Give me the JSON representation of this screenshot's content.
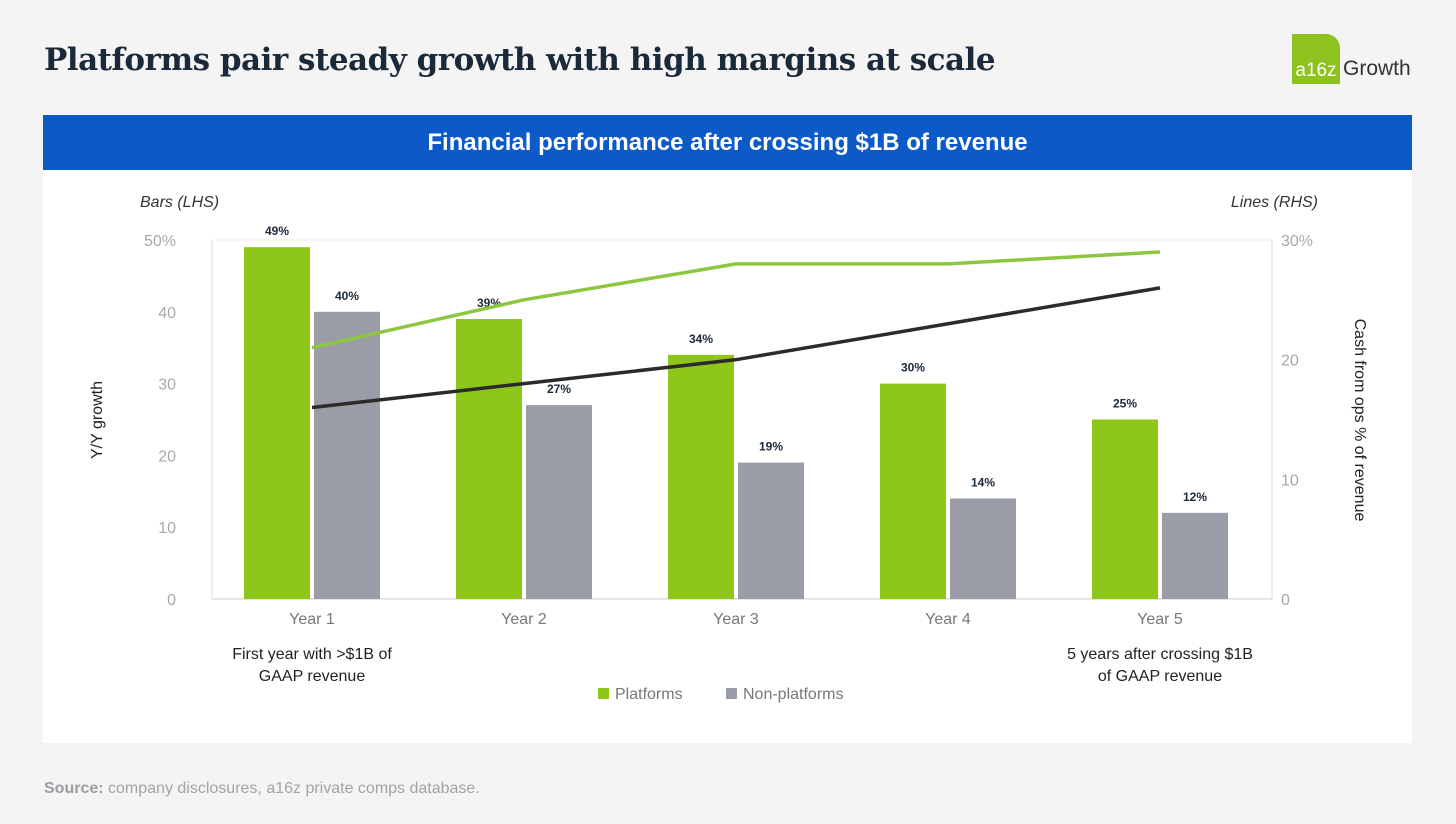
{
  "title": "Platforms pair steady growth with high margins at scale",
  "logo": {
    "mark": "a16z",
    "text": "Growth"
  },
  "banner": "Financial performance after crossing $1B of revenue",
  "source": {
    "label": "Source:",
    "text": " company disclosures, a16z private comps database."
  },
  "colors": {
    "platforms": "#8fc61a",
    "non_platforms": "#9a9ca8",
    "platforms_line": "#8dc63f",
    "non_platforms_line": "#2b2b2b",
    "banner": "#0b5ac7"
  },
  "chart_data": {
    "type": "bar",
    "title": "Financial performance after crossing $1B of revenue",
    "categories": [
      "Year 1",
      "Year 2",
      "Year 3",
      "Year 4",
      "Year 5"
    ],
    "lhs_label": "Bars (LHS)",
    "rhs_label": "Lines (RHS)",
    "ylabel": "Y/Y growth",
    "y2label": "Cash from ops % of revenue",
    "ylim": [
      0,
      50
    ],
    "y2lim": [
      0,
      30
    ],
    "yticks": [
      "0",
      "10",
      "20",
      "30",
      "40",
      "50%"
    ],
    "y2ticks": [
      "0",
      "10",
      "20",
      "30%"
    ],
    "series": [
      {
        "name": "Platforms",
        "type": "bar",
        "axis": "left",
        "values": [
          49,
          39,
          34,
          30,
          25
        ],
        "labels": [
          "49%",
          "39%",
          "34%",
          "30%",
          "25%"
        ]
      },
      {
        "name": "Non-platforms",
        "type": "bar",
        "axis": "left",
        "values": [
          40,
          27,
          19,
          14,
          12
        ],
        "labels": [
          "40%",
          "27%",
          "19%",
          "14%",
          "12%"
        ]
      },
      {
        "name": "Platforms",
        "type": "line",
        "axis": "right",
        "values": [
          21,
          25,
          28,
          28,
          29
        ]
      },
      {
        "name": "Non-platforms",
        "type": "line",
        "axis": "right",
        "values": [
          16,
          18,
          20,
          23,
          26
        ]
      }
    ],
    "annotations": [
      "First year with >$1B of GAAP revenue",
      "5 years after crossing $1B of GAAP revenue"
    ],
    "legend": [
      "Platforms",
      "Non-platforms"
    ],
    "legend_position": "bottom-center",
    "grid": false
  }
}
